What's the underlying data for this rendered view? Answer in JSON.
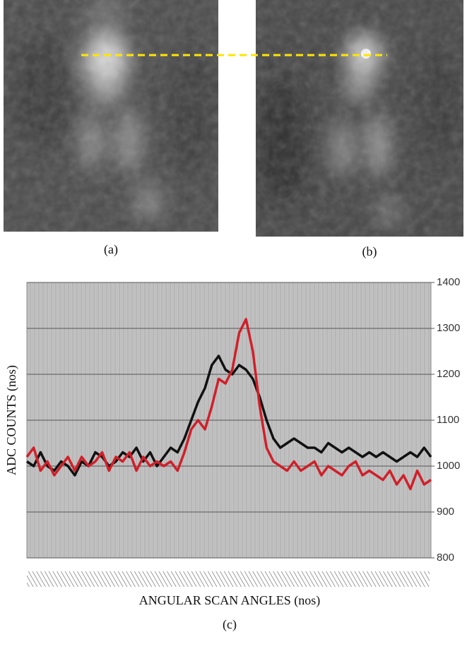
{
  "panels": [
    "(a)",
    "(b)"
  ],
  "chart_data": {
    "type": "line",
    "y_label": "ADC COUNTS (nos)",
    "x_label": "ANGULAR SCAN ANGLES (nos)",
    "caption": "(c)",
    "ylim": [
      800,
      1400
    ],
    "yticks": [
      800,
      900,
      1000,
      1100,
      1200,
      1300,
      1400
    ],
    "grid": true,
    "series": [
      {
        "color": "#111111",
        "values": [
          1010,
          1000,
          1030,
          1000,
          990,
          1010,
          1000,
          980,
          1010,
          1000,
          1030,
          1020,
          1000,
          1010,
          1030,
          1020,
          1040,
          1010,
          1030,
          1000,
          1020,
          1040,
          1030,
          1060,
          1100,
          1140,
          1170,
          1220,
          1240,
          1210,
          1200,
          1220,
          1210,
          1190,
          1150,
          1100,
          1060,
          1040,
          1050,
          1060,
          1050,
          1040,
          1040,
          1030,
          1050,
          1040,
          1030,
          1040,
          1030,
          1020,
          1030,
          1020,
          1030,
          1020,
          1010,
          1020,
          1030,
          1020,
          1040,
          1020
        ]
      },
      {
        "color": "#d0202a",
        "values": [
          1020,
          1040,
          990,
          1010,
          980,
          1000,
          1020,
          990,
          1020,
          1000,
          1010,
          1030,
          990,
          1020,
          1010,
          1030,
          990,
          1020,
          1000,
          1010,
          1000,
          1010,
          990,
          1030,
          1080,
          1100,
          1080,
          1130,
          1190,
          1180,
          1210,
          1290,
          1320,
          1250,
          1130,
          1040,
          1010,
          1000,
          990,
          1010,
          990,
          1000,
          1010,
          980,
          1000,
          990,
          980,
          1000,
          1010,
          980,
          990,
          980,
          970,
          990,
          960,
          980,
          950,
          990,
          960,
          970
        ]
      }
    ]
  }
}
